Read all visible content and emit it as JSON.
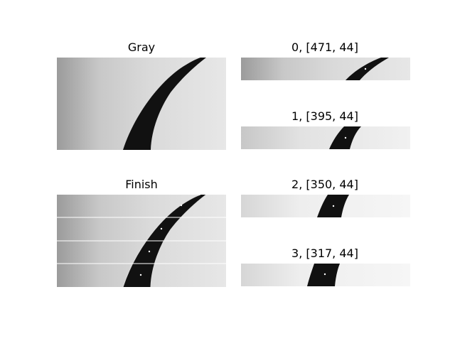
{
  "figure": {
    "background": "#ffffff",
    "panels": [
      {
        "id": "gray",
        "title": "Gray",
        "content": "grayscale road image"
      },
      {
        "id": "finish",
        "title": "Finish",
        "content": "road image with 4 window slices and centroid dots"
      },
      {
        "id": "slice0",
        "title": "0, [471, 44]",
        "content": "slice 0"
      },
      {
        "id": "slice1",
        "title": "1, [395, 44]",
        "content": "slice 1"
      },
      {
        "id": "slice2",
        "title": "2, [350, 44]",
        "content": "slice 2"
      },
      {
        "id": "slice3",
        "title": "3, [317, 44]",
        "content": "slice 3"
      }
    ],
    "colors": {
      "road": "#121212",
      "bg_light": "#e6e6e6",
      "bg_dark": "#9e9e9e",
      "marker": "#ffffff"
    }
  }
}
